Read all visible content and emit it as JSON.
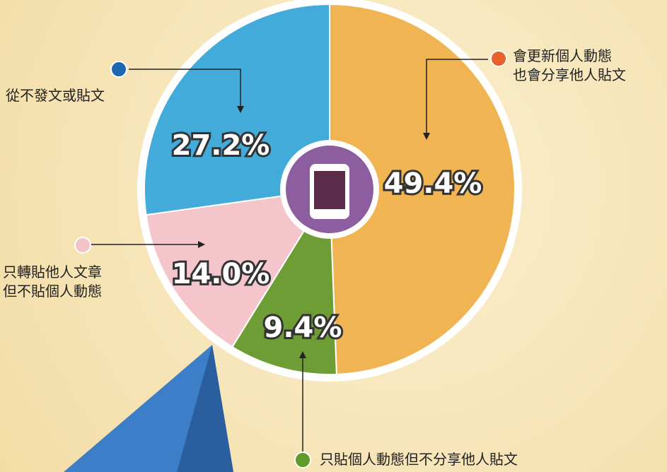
{
  "chart_data": {
    "type": "pie",
    "categories": [
      "會更新個人動態\n也會分享他人貼文",
      "只貼個人動態但不分享他人貼文",
      "只轉貼他人文章\n但不貼個人動態",
      "從不發文或貼文"
    ],
    "values": [
      49.4,
      9.4,
      14.0,
      27.2
    ],
    "value_labels": [
      "49.4%",
      "9.4%",
      "14.0%",
      "27.2%"
    ],
    "colors": [
      "#f0b552",
      "#6f9d35",
      "#f5c5cc",
      "#42abd9"
    ],
    "dot_colors": [
      "#e8612c",
      "#5f9a2a",
      "#f3c3c9",
      "#1e68b2"
    ]
  }
}
